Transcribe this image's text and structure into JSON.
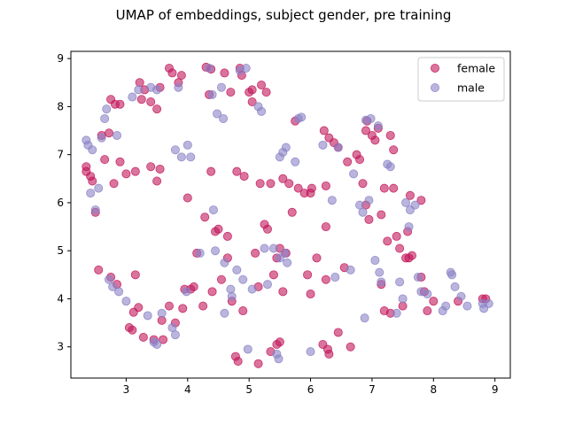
{
  "chart_data": {
    "type": "scatter",
    "title": "UMAP of embeddings, subject gender, pre training",
    "xlabel": "",
    "ylabel": "",
    "xlim": [
      2.1,
      9.25
    ],
    "ylim": [
      2.35,
      9.15
    ],
    "xticks": [
      3,
      4,
      5,
      6,
      7,
      8,
      9
    ],
    "yticks": [
      3,
      4,
      5,
      6,
      7,
      8,
      9
    ],
    "grid": false,
    "legend_position": "top-right",
    "series": [
      {
        "name": "female",
        "color": "#c2185b",
        "points": [
          [
            2.35,
            6.75
          ],
          [
            2.35,
            6.65
          ],
          [
            2.42,
            6.55
          ],
          [
            2.45,
            6.45
          ],
          [
            2.5,
            5.8
          ],
          [
            2.55,
            4.6
          ],
          [
            2.6,
            7.4
          ],
          [
            2.65,
            6.9
          ],
          [
            2.72,
            7.45
          ],
          [
            2.75,
            8.15
          ],
          [
            2.75,
            4.45
          ],
          [
            2.8,
            6.4
          ],
          [
            2.82,
            8.05
          ],
          [
            2.85,
            4.3
          ],
          [
            2.9,
            8.05
          ],
          [
            2.9,
            6.85
          ],
          [
            3.0,
            6.6
          ],
          [
            3.05,
            3.4
          ],
          [
            3.1,
            3.35
          ],
          [
            3.12,
            3.72
          ],
          [
            3.15,
            6.65
          ],
          [
            3.15,
            4.5
          ],
          [
            3.2,
            3.82
          ],
          [
            3.22,
            8.5
          ],
          [
            3.25,
            8.15
          ],
          [
            3.28,
            3.2
          ],
          [
            3.3,
            8.35
          ],
          [
            3.4,
            8.1
          ],
          [
            3.4,
            6.75
          ],
          [
            3.45,
            3.15
          ],
          [
            3.5,
            7.95
          ],
          [
            3.5,
            6.45
          ],
          [
            3.55,
            8.4
          ],
          [
            3.55,
            6.7
          ],
          [
            3.58,
            3.55
          ],
          [
            3.6,
            3.15
          ],
          [
            3.7,
            3.85
          ],
          [
            3.7,
            8.8
          ],
          [
            3.75,
            8.7
          ],
          [
            3.8,
            3.5
          ],
          [
            3.85,
            8.5
          ],
          [
            3.9,
            8.65
          ],
          [
            3.92,
            3.8
          ],
          [
            3.95,
            4.2
          ],
          [
            4.0,
            6.1
          ],
          [
            4.05,
            4.2
          ],
          [
            4.1,
            4.25
          ],
          [
            4.15,
            4.95
          ],
          [
            4.25,
            3.85
          ],
          [
            4.28,
            5.7
          ],
          [
            4.3,
            8.82
          ],
          [
            4.35,
            8.25
          ],
          [
            4.38,
            8.78
          ],
          [
            4.38,
            6.65
          ],
          [
            4.4,
            4.15
          ],
          [
            4.45,
            5.4
          ],
          [
            4.5,
            5.45
          ],
          [
            4.55,
            4.4
          ],
          [
            4.6,
            8.7
          ],
          [
            4.65,
            5.3
          ],
          [
            4.65,
            4.85
          ],
          [
            4.7,
            8.3
          ],
          [
            4.72,
            3.95
          ],
          [
            4.78,
            2.8
          ],
          [
            4.8,
            6.65
          ],
          [
            4.82,
            2.7
          ],
          [
            4.85,
            8.8
          ],
          [
            4.88,
            8.65
          ],
          [
            4.9,
            3.75
          ],
          [
            4.92,
            6.55
          ],
          [
            5.0,
            8.3
          ],
          [
            5.05,
            8.35
          ],
          [
            5.05,
            8.1
          ],
          [
            5.1,
            4.95
          ],
          [
            5.15,
            4.25
          ],
          [
            5.15,
            2.65
          ],
          [
            5.18,
            6.4
          ],
          [
            5.2,
            8.45
          ],
          [
            5.25,
            5.55
          ],
          [
            5.28,
            8.3
          ],
          [
            5.3,
            5.45
          ],
          [
            5.35,
            6.4
          ],
          [
            5.35,
            2.9
          ],
          [
            5.4,
            4.5
          ],
          [
            5.45,
            4.85
          ],
          [
            5.45,
            3.05
          ],
          [
            5.5,
            5.05
          ],
          [
            5.5,
            3.1
          ],
          [
            5.55,
            4.15
          ],
          [
            5.55,
            6.5
          ],
          [
            5.6,
            4.95
          ],
          [
            5.65,
            6.4
          ],
          [
            5.7,
            5.8
          ],
          [
            5.75,
            7.7
          ],
          [
            5.8,
            6.3
          ],
          [
            5.9,
            6.2
          ],
          [
            5.95,
            4.5
          ],
          [
            6.0,
            6.2
          ],
          [
            6.0,
            4.1
          ],
          [
            6.02,
            6.3
          ],
          [
            6.1,
            4.85
          ],
          [
            6.2,
            3.05
          ],
          [
            6.25,
            6.35
          ],
          [
            6.25,
            5.5
          ],
          [
            6.25,
            4.4
          ],
          [
            6.22,
            7.5
          ],
          [
            6.28,
            2.95
          ],
          [
            6.3,
            2.85
          ],
          [
            6.3,
            7.35
          ],
          [
            6.38,
            7.25
          ],
          [
            6.45,
            3.3
          ],
          [
            6.45,
            7.15
          ],
          [
            6.55,
            4.65
          ],
          [
            6.6,
            6.85
          ],
          [
            6.65,
            3.0
          ],
          [
            6.75,
            7.0
          ],
          [
            6.8,
            6.9
          ],
          [
            6.85,
            6.4
          ],
          [
            6.9,
            5.95
          ],
          [
            6.95,
            5.65
          ],
          [
            6.9,
            7.5
          ],
          [
            6.92,
            7.7
          ],
          [
            7.0,
            7.4
          ],
          [
            7.05,
            7.3
          ],
          [
            7.1,
            7.55
          ],
          [
            7.15,
            5.75
          ],
          [
            7.15,
            4.3
          ],
          [
            7.2,
            6.3
          ],
          [
            7.2,
            3.75
          ],
          [
            7.25,
            5.2
          ],
          [
            7.3,
            7.4
          ],
          [
            7.3,
            3.7
          ],
          [
            7.35,
            6.3
          ],
          [
            7.35,
            7.1
          ],
          [
            7.4,
            5.3
          ],
          [
            7.45,
            5.05
          ],
          [
            7.5,
            3.85
          ],
          [
            7.55,
            4.85
          ],
          [
            7.58,
            5.4
          ],
          [
            7.6,
            4.85
          ],
          [
            7.62,
            6.15
          ],
          [
            7.65,
            4.9
          ],
          [
            7.8,
            4.45
          ],
          [
            7.8,
            6.05
          ],
          [
            7.85,
            4.15
          ],
          [
            7.9,
            3.75
          ],
          [
            8.0,
            3.95
          ],
          [
            8.4,
            3.95
          ],
          [
            8.8,
            4.0
          ],
          [
            8.85,
            4.0
          ]
        ]
      },
      {
        "name": "male",
        "color": "#8b83c7",
        "points": [
          [
            2.35,
            7.3
          ],
          [
            2.38,
            7.2
          ],
          [
            2.42,
            6.2
          ],
          [
            2.45,
            7.1
          ],
          [
            2.5,
            5.85
          ],
          [
            2.55,
            6.3
          ],
          [
            2.6,
            7.35
          ],
          [
            2.65,
            7.75
          ],
          [
            2.68,
            7.95
          ],
          [
            2.72,
            4.4
          ],
          [
            2.78,
            4.25
          ],
          [
            2.85,
            7.4
          ],
          [
            2.88,
            4.15
          ],
          [
            3.0,
            3.95
          ],
          [
            3.1,
            8.2
          ],
          [
            3.2,
            8.35
          ],
          [
            3.35,
            3.65
          ],
          [
            3.4,
            8.4
          ],
          [
            3.45,
            3.1
          ],
          [
            3.5,
            3.05
          ],
          [
            3.5,
            8.35
          ],
          [
            3.58,
            3.7
          ],
          [
            3.75,
            3.4
          ],
          [
            3.8,
            3.25
          ],
          [
            3.8,
            7.1
          ],
          [
            3.85,
            8.4
          ],
          [
            3.9,
            6.95
          ],
          [
            3.98,
            4.15
          ],
          [
            4.0,
            7.2
          ],
          [
            4.05,
            6.95
          ],
          [
            4.2,
            4.95
          ],
          [
            4.35,
            8.8
          ],
          [
            4.4,
            8.25
          ],
          [
            4.42,
            5.85
          ],
          [
            4.45,
            5.0
          ],
          [
            4.48,
            7.85
          ],
          [
            4.55,
            8.4
          ],
          [
            4.58,
            7.75
          ],
          [
            4.6,
            4.75
          ],
          [
            4.6,
            3.7
          ],
          [
            4.7,
            4.2
          ],
          [
            4.72,
            4.05
          ],
          [
            4.8,
            4.6
          ],
          [
            4.85,
            8.75
          ],
          [
            4.9,
            4.4
          ],
          [
            4.95,
            8.8
          ],
          [
            4.98,
            2.95
          ],
          [
            5.05,
            4.2
          ],
          [
            5.15,
            8.0
          ],
          [
            5.2,
            7.9
          ],
          [
            5.25,
            5.05
          ],
          [
            5.3,
            4.3
          ],
          [
            5.4,
            5.05
          ],
          [
            5.45,
            2.85
          ],
          [
            5.48,
            2.75
          ],
          [
            5.5,
            4.85
          ],
          [
            5.5,
            6.95
          ],
          [
            5.55,
            7.05
          ],
          [
            5.58,
            4.95
          ],
          [
            5.6,
            7.15
          ],
          [
            5.62,
            4.75
          ],
          [
            5.75,
            6.85
          ],
          [
            5.8,
            7.75
          ],
          [
            5.85,
            7.78
          ],
          [
            6.0,
            2.9
          ],
          [
            6.2,
            7.2
          ],
          [
            6.35,
            6.05
          ],
          [
            6.4,
            4.45
          ],
          [
            6.45,
            7.15
          ],
          [
            6.65,
            4.6
          ],
          [
            6.7,
            6.6
          ],
          [
            6.8,
            5.95
          ],
          [
            6.85,
            5.8
          ],
          [
            6.88,
            3.6
          ],
          [
            6.9,
            7.72
          ],
          [
            6.95,
            6.05
          ],
          [
            6.98,
            7.75
          ],
          [
            7.05,
            4.8
          ],
          [
            7.1,
            7.6
          ],
          [
            7.12,
            4.55
          ],
          [
            7.15,
            4.35
          ],
          [
            7.25,
            6.8
          ],
          [
            7.3,
            6.75
          ],
          [
            7.4,
            3.7
          ],
          [
            7.45,
            4.35
          ],
          [
            7.5,
            4.0
          ],
          [
            7.55,
            6.0
          ],
          [
            7.6,
            5.5
          ],
          [
            7.62,
            5.85
          ],
          [
            7.7,
            5.95
          ],
          [
            7.75,
            4.45
          ],
          [
            7.8,
            4.15
          ],
          [
            7.9,
            4.1
          ],
          [
            8.15,
            3.75
          ],
          [
            8.2,
            3.85
          ],
          [
            8.28,
            4.55
          ],
          [
            8.3,
            4.5
          ],
          [
            8.35,
            4.25
          ],
          [
            8.45,
            4.05
          ],
          [
            8.55,
            3.85
          ],
          [
            8.8,
            3.9
          ],
          [
            8.82,
            3.8
          ],
          [
            8.9,
            3.9
          ]
        ]
      }
    ]
  }
}
